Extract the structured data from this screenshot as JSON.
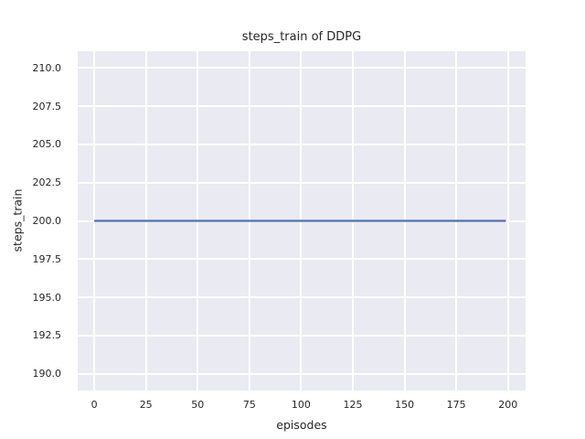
{
  "chart_data": {
    "type": "line",
    "title": "steps_train of DDPG",
    "xlabel": "episodes",
    "ylabel": "steps_train",
    "xlim": [
      -8,
      208.5
    ],
    "ylim": [
      188.9,
      211.1
    ],
    "grid": true,
    "legend": false,
    "plot_bg_color": "#eaeaf2",
    "grid_color": "#ffffff",
    "text_color": "#262626",
    "x_ticks": {
      "values": [
        0,
        25,
        50,
        75,
        100,
        125,
        150,
        175,
        200
      ],
      "labels": [
        "0",
        "25",
        "50",
        "75",
        "100",
        "125",
        "150",
        "175",
        "200"
      ]
    },
    "y_ticks": {
      "values": [
        190.0,
        192.5,
        195.0,
        197.5,
        200.0,
        202.5,
        205.0,
        207.5,
        210.0
      ],
      "labels": [
        "190.0",
        "192.5",
        "195.0",
        "197.5",
        "200.0",
        "202.5",
        "205.0",
        "207.5",
        "210.0"
      ]
    },
    "series": [
      {
        "name": "steps_train",
        "color": "#4c72b0",
        "line_width": 2.2,
        "x": [
          0,
          199
        ],
        "y": [
          200,
          200
        ]
      }
    ]
  }
}
